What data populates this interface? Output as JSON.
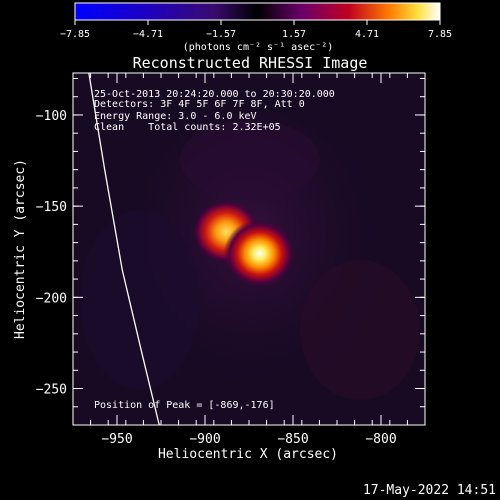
{
  "chart_data": {
    "type": "heatmap",
    "title": "Reconstructed RHESSI Image",
    "xlabel": "Heliocentric X (arcsec)",
    "ylabel": "Heliocentric Y (arcsec)",
    "xlim": [
      -975,
      -775
    ],
    "ylim": [
      -270,
      -77
    ],
    "x_ticks": [
      -950,
      -900,
      -850,
      -800
    ],
    "y_ticks": [
      -100,
      -150,
      -200,
      -250
    ],
    "x_tick_labels": [
      "−950",
      "−900",
      "−850",
      "−800"
    ],
    "y_tick_labels": [
      "−100",
      "−150",
      "−200",
      "−250"
    ],
    "colorbar": {
      "range": [
        -7.85,
        7.85
      ],
      "ticks": [
        -7.85,
        -4.71,
        -1.57,
        1.57,
        4.71,
        7.85
      ],
      "tick_labels": [
        "−7.85",
        "−4.71",
        "−1.57",
        "1.57",
        "4.71",
        "7.85"
      ],
      "label": "(photons cm⁻² s⁻¹ asec⁻²)"
    },
    "sources": [
      {
        "x": -888,
        "y": -164,
        "peak": 5.8
      },
      {
        "x": -869,
        "y": -176,
        "peak": 7.85
      }
    ],
    "limb_curve": [
      [
        -966,
        -77
      ],
      [
        -957,
        -130
      ],
      [
        -947,
        -185
      ],
      [
        -936,
        -230
      ],
      [
        -926,
        -270
      ]
    ],
    "annotations": {
      "time": "25-Oct-2013 20:24:20.000 to 20:30:20.000",
      "detectors": "Detectors: 3F 4F 5F 6F 7F 8F, Att 0",
      "energy": "Energy Range: 3.0 - 6.0 keV",
      "clean": "Clean    Total counts: 2.32E+05",
      "peak": "Position of Peak = [-869,-176]"
    },
    "footer_date": "17-May-2022 14:51"
  }
}
